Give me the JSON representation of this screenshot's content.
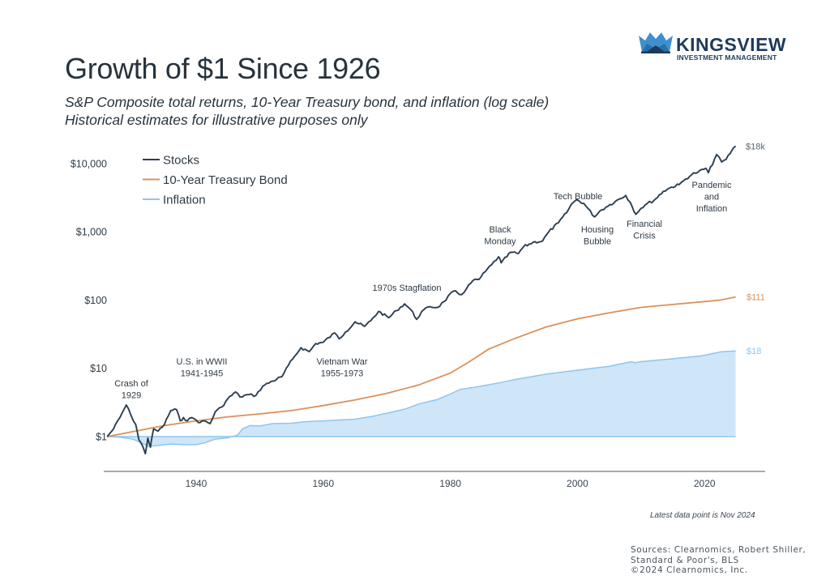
{
  "header": {
    "title": "Growth of $1 Since 1926",
    "subtitle_line1": "S&P Composite total returns, 10-Year Treasury bond, and inflation (log scale)",
    "subtitle_line2": "Historical estimates for illustrative purposes only"
  },
  "logo": {
    "icon": "crown-icon",
    "name": "KINGSVIEW",
    "tagline": "INVESTMENT MANAGEMENT",
    "colors": {
      "dark": "#1f3a5c",
      "mid": "#2b6ea8",
      "light": "#3f8fcf"
    }
  },
  "footer": {
    "note": "Latest data point is Nov 2024",
    "sources": [
      "Sources: Clearnomics, Robert Shiller,",
      "Standard & Poor's, BLS",
      "©2024 Clearnomics, Inc."
    ]
  },
  "chart_data": {
    "type": "line",
    "title": "Growth of $1 Since 1926",
    "subtitle": "S&P Composite total returns, 10-Year Treasury bond, and inflation (log scale)",
    "xlabel": "",
    "ylabel": "",
    "yscale": "log",
    "ylim": [
      0.4,
      30000
    ],
    "xlim": [
      1926,
      2026
    ],
    "grid": false,
    "legend_position": "top-left",
    "x_ticks": [
      1940,
      1960,
      1980,
      2000,
      2020
    ],
    "y_ticks": [
      {
        "value": 1,
        "label": "$1"
      },
      {
        "value": 10,
        "label": "$10"
      },
      {
        "value": 100,
        "label": "$100"
      },
      {
        "value": 1000,
        "label": "$1,000"
      },
      {
        "value": 10000,
        "label": "$10,000"
      }
    ],
    "series": [
      {
        "name": "Stocks",
        "style": "line",
        "color": "#2c3e50",
        "end_label": "$18k",
        "x": [
          1926,
          1927,
          1928,
          1929,
          1929.7,
          1930.5,
          1931,
          1931.5,
          1932,
          1932.4,
          1932.8,
          1933.3,
          1934,
          1935,
          1936,
          1936.9,
          1937.5,
          1938,
          1938.6,
          1939.3,
          1940,
          1940.6,
          1941.3,
          1942.2,
          1943,
          1944,
          1945,
          1946.2,
          1946.9,
          1948,
          1949.4,
          1950.5,
          1952,
          1953.5,
          1954.5,
          1955.5,
          1956.5,
          1957.8,
          1958.8,
          1960,
          1961.8,
          1962.5,
          1963.5,
          1965,
          1966.5,
          1967.5,
          1968.7,
          1970.3,
          1971.5,
          1972.8,
          1973.8,
          1974.7,
          1975.5,
          1976.8,
          1978,
          1979,
          1980.5,
          1981.8,
          1982.6,
          1983.5,
          1984.5,
          1985.5,
          1986.5,
          1987.6,
          1988,
          1989.5,
          1990.7,
          1991.5,
          1993,
          1994.5,
          1995.5,
          1997,
          1998.3,
          1999,
          1999.9,
          2001,
          2002.7,
          2003.5,
          2004.5,
          2006,
          2007.6,
          2008.3,
          2009.2,
          2010,
          2011,
          2012,
          2013.5,
          2014.8,
          2016,
          2017,
          2018,
          2019,
          2020.2,
          2020.6,
          2021.9,
          2022.7,
          2023.4,
          2024.3,
          2024.9
        ],
        "values": [
          1,
          1.3,
          1.9,
          2.9,
          2.1,
          1.5,
          0.9,
          0.75,
          0.56,
          0.95,
          0.7,
          1.3,
          1.2,
          1.5,
          2.4,
          2.5,
          1.7,
          1.9,
          1.7,
          1.9,
          1.75,
          1.6,
          1.7,
          1.55,
          2.3,
          2.7,
          3.6,
          4.5,
          3.8,
          4.1,
          4.0,
          5.5,
          6.5,
          7.5,
          11,
          15,
          20,
          17.5,
          23,
          24,
          33,
          27,
          34,
          48,
          41,
          50,
          68,
          55,
          70,
          88,
          72,
          52,
          68,
          80,
          78,
          95,
          135,
          120,
          150,
          190,
          200,
          260,
          330,
          430,
          350,
          500,
          480,
          600,
          700,
          730,
          1000,
          1350,
          1900,
          2500,
          2950,
          2600,
          1650,
          2000,
          2300,
          2800,
          3400,
          2700,
          1800,
          2200,
          2600,
          2850,
          3900,
          4500,
          4900,
          5900,
          6900,
          7500,
          8500,
          7300,
          13500,
          10500,
          11500,
          15500,
          18000
        ]
      },
      {
        "name": "10-Year Treasury Bond",
        "style": "line",
        "color": "#d9915a",
        "end_label": "$111",
        "x": [
          1926,
          1935,
          1940,
          1945,
          1950,
          1955,
          1960,
          1965,
          1970,
          1975,
          1980,
          1983,
          1986,
          1990,
          1995,
          2000,
          2005,
          2010,
          2015,
          2020,
          2022.5,
          2024.9
        ],
        "values": [
          1,
          1.45,
          1.7,
          1.95,
          2.15,
          2.4,
          2.85,
          3.45,
          4.3,
          5.7,
          8.5,
          12.5,
          19,
          27,
          40,
          53,
          65,
          78,
          86,
          95,
          100,
          111
        ]
      },
      {
        "name": "Inflation",
        "style": "area",
        "color": "#8ec5ef",
        "fill": "#cfe6f8",
        "end_label": "$18",
        "x": [
          1926,
          1928,
          1930,
          1931.5,
          1932.5,
          1934,
          1936,
          1938,
          1940,
          1941.5,
          1943,
          1945,
          1946.5,
          1947.3,
          1948.5,
          1950,
          1952,
          1955,
          1957,
          1960,
          1965,
          1968,
          1970,
          1973,
          1975,
          1978,
          1980,
          1981.5,
          1984,
          1988,
          1990,
          1995,
          2000,
          2005,
          2008.5,
          2009,
          2010,
          2015,
          2019.5,
          2021.5,
          2022.7,
          2024.9
        ],
        "values": [
          1,
          0.98,
          0.92,
          0.8,
          0.72,
          0.74,
          0.78,
          0.76,
          0.76,
          0.82,
          0.92,
          0.96,
          1.05,
          1.3,
          1.45,
          1.43,
          1.55,
          1.57,
          1.65,
          1.7,
          1.8,
          2.0,
          2.2,
          2.55,
          3.0,
          3.5,
          4.2,
          4.9,
          5.3,
          6.2,
          6.8,
          8.2,
          9.4,
          10.7,
          12.5,
          12.1,
          12.5,
          13.8,
          15.2,
          16.6,
          17.5,
          18
        ]
      }
    ],
    "annotations": [
      {
        "text_lines": [
          "Crash of",
          "1929"
        ],
        "year": 1929.5
      },
      {
        "text_lines": [
          "U.S. in WWII",
          "1941-1945"
        ],
        "year": 1943
      },
      {
        "text_lines": [
          "Vietnam War",
          "1955-1973"
        ],
        "year": 1964
      },
      {
        "text_lines": [
          "1970s Stagflation"
        ],
        "year": 1975
      },
      {
        "text_lines": [
          "Black",
          "Monday"
        ],
        "year": 1987
      },
      {
        "text_lines": [
          "Tech Bubble"
        ],
        "year": 2000
      },
      {
        "text_lines": [
          "Housing",
          "Bubble"
        ],
        "year": 2003
      },
      {
        "text_lines": [
          "Financial",
          "Crisis"
        ],
        "year": 2009
      },
      {
        "text_lines": [
          "Pandemic",
          "and",
          "Inflation"
        ],
        "year": 2020
      }
    ]
  }
}
